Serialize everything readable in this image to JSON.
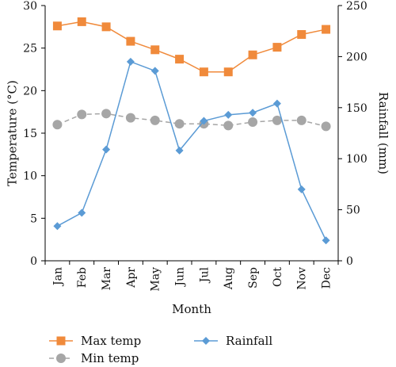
{
  "chart_data": {
    "type": "line",
    "categories": [
      "Jan",
      "Feb",
      "Mar",
      "Apr",
      "May",
      "Jun",
      "Jul",
      "Aug",
      "Sep",
      "Oct",
      "Nov",
      "Dec"
    ],
    "xlabel": "Month",
    "ylabel_left": "Temperature (°C)",
    "ylabel_right": "Rainfall (mm)",
    "ylim_left": [
      0,
      30
    ],
    "ylim_right": [
      0,
      250
    ],
    "yticks_left": [
      0,
      5,
      10,
      15,
      20,
      25,
      30
    ],
    "yticks_right": [
      0,
      50,
      100,
      150,
      200,
      250
    ],
    "grid": false,
    "legend_position": "bottom",
    "series": [
      {
        "name": "Max temp",
        "axis": "left",
        "color": "#F08A3B",
        "marker": "square",
        "line_style": "solid",
        "values": [
          27.6,
          28.1,
          27.5,
          25.8,
          24.8,
          23.7,
          22.2,
          22.2,
          24.2,
          25.1,
          26.6,
          27.2
        ]
      },
      {
        "name": "Min temp",
        "axis": "left",
        "color": "#A6A6A6",
        "marker": "circle",
        "line_style": "dashed",
        "values": [
          16.0,
          17.2,
          17.3,
          16.8,
          16.5,
          16.1,
          16.1,
          15.9,
          16.3,
          16.5,
          16.5,
          15.8
        ]
      },
      {
        "name": "Rainfall",
        "axis": "right",
        "color": "#5B9BD5",
        "marker": "diamond",
        "line_style": "solid",
        "values": [
          34,
          47,
          109,
          195,
          186,
          108,
          137,
          143,
          145,
          154,
          70,
          20
        ]
      }
    ]
  }
}
